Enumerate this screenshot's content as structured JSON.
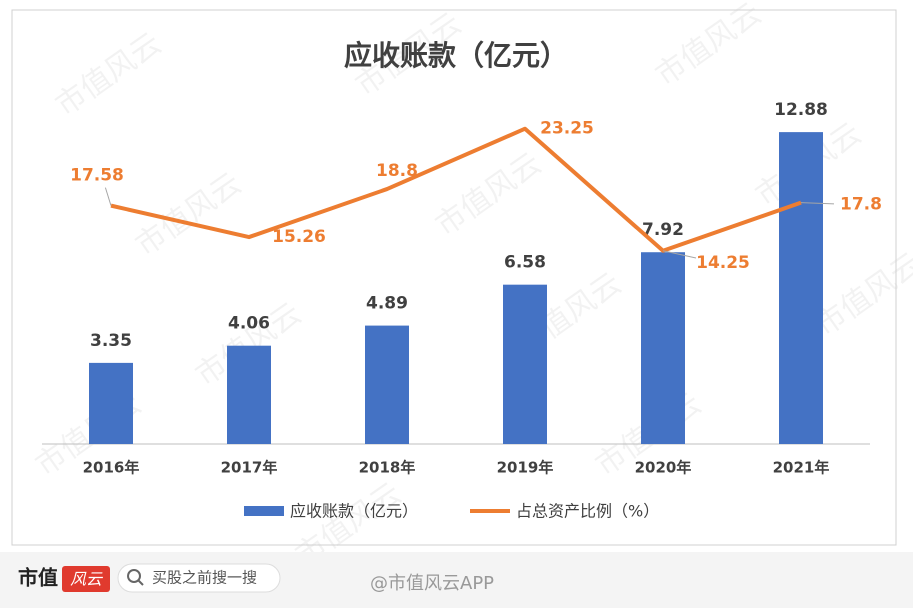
{
  "chart_data": {
    "type": "bar",
    "title": "应收账款（亿元）",
    "categories": [
      "2016年",
      "2017年",
      "2018年",
      "2019年",
      "2020年",
      "2021年"
    ],
    "series": [
      {
        "name": "应收账款（亿元）",
        "type": "bar",
        "color": "#4472c4",
        "values": [
          3.35,
          4.06,
          4.89,
          6.58,
          7.92,
          12.88
        ]
      },
      {
        "name": "占总资产比例（%）",
        "type": "line",
        "axis": "y2",
        "color": "#ed7d31",
        "values": [
          17.58,
          15.26,
          18.8,
          23.25,
          14.25,
          17.8
        ]
      }
    ],
    "ylim": [
      0,
      14
    ],
    "y2lim": [
      0,
      25
    ],
    "legend": "bottom"
  },
  "footer": {
    "brand": "市值",
    "logo": "风云",
    "search": "买股之前搜一搜",
    "source": "@市值风云APP"
  },
  "watermark": "市值风云"
}
